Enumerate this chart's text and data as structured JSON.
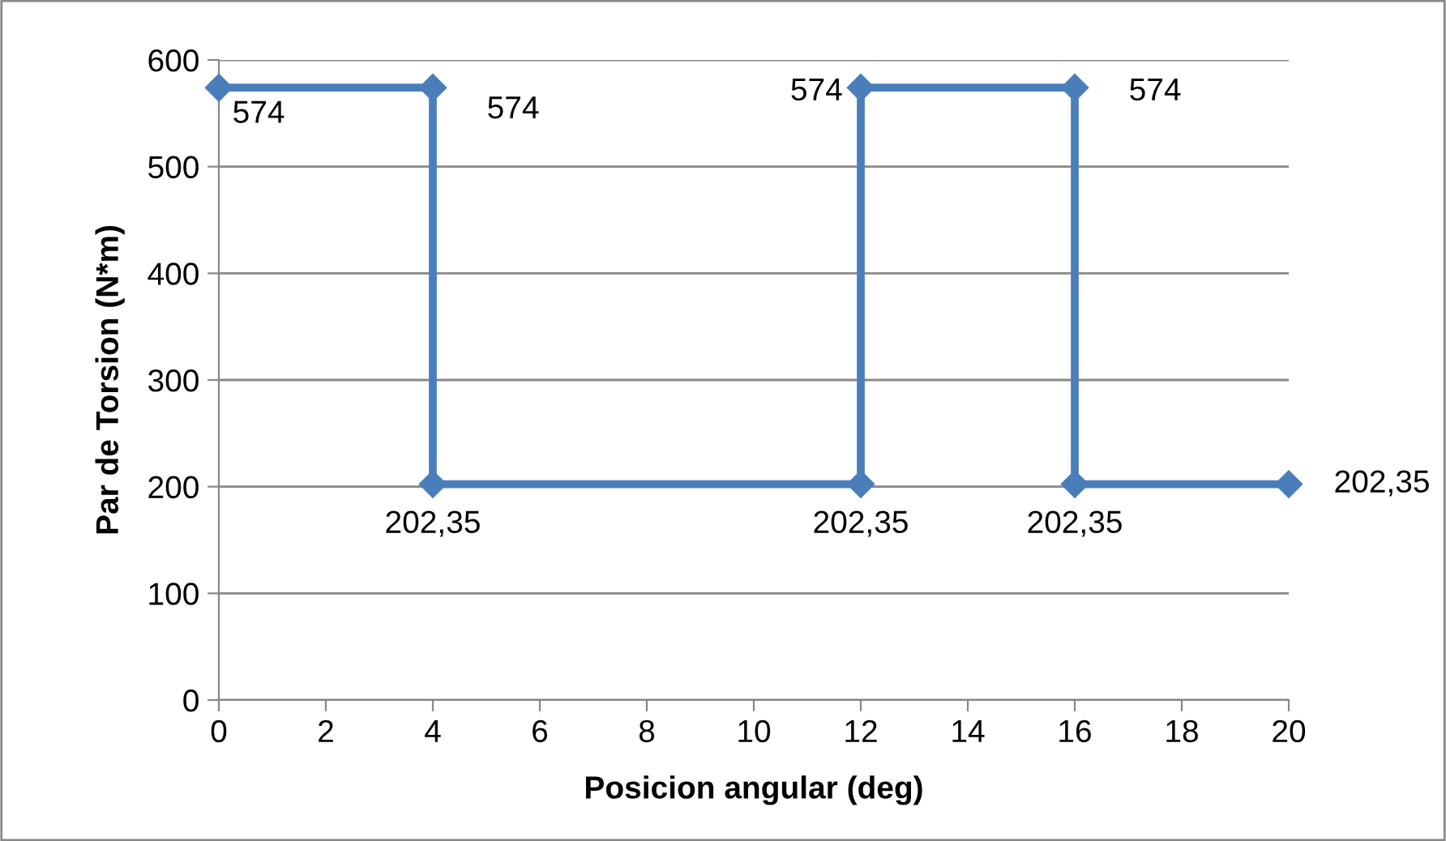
{
  "chart_data": {
    "type": "line",
    "xlabel": "Posicion angular (deg)",
    "ylabel": "Par de Torsion (N*m)",
    "series": [
      {
        "color": "#4a7ebb",
        "x": [
          0,
          4,
          4,
          12,
          12,
          16,
          16,
          20
        ],
        "values": [
          574,
          574,
          202.35,
          202.35,
          574,
          574,
          202.35,
          202.35
        ],
        "value_labels": [
          "574",
          "574",
          "202,35",
          "202,35",
          "574",
          "574",
          "202,35",
          "202,35"
        ]
      }
    ],
    "xlim": [
      0,
      20
    ],
    "xticks": [
      0,
      2,
      4,
      6,
      8,
      10,
      12,
      14,
      16,
      18,
      20
    ],
    "ylim": [
      0,
      600
    ],
    "yticks": [
      0,
      100,
      200,
      300,
      400,
      500,
      600
    ],
    "grid": "y",
    "legend": false,
    "marker": "diamond",
    "line_style": "solid"
  }
}
